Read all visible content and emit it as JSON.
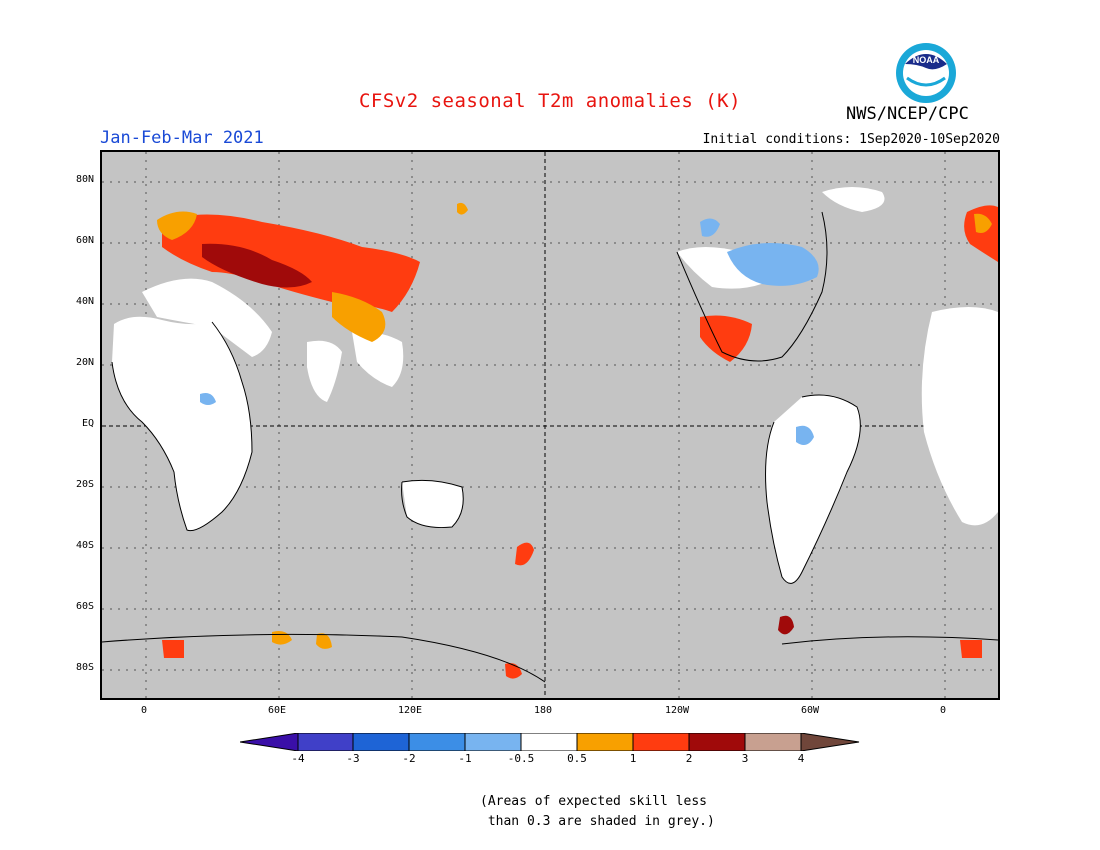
{
  "title": "CFSv2 seasonal T2m anomalies (K)",
  "organization": "NWS/NCEP/CPC",
  "period": "Jan-Feb-Mar 2021",
  "initial_conditions": "Initial conditions: 1Sep2020-10Sep2020",
  "logo_text": "NOAA",
  "latitude_labels": [
    "80N",
    "60N",
    "40N",
    "20N",
    "EQ",
    "20S",
    "40S",
    "60S",
    "80S"
  ],
  "longitude_labels": [
    "0",
    "60E",
    "120E",
    "180",
    "120W",
    "60W",
    "0"
  ],
  "colorbar": {
    "ticks": [
      "-4",
      "-3",
      "-2",
      "-1",
      "-0.5",
      "0.5",
      "1",
      "2",
      "3",
      "4"
    ],
    "colors": [
      "#3a0fa8",
      "#4040c8",
      "#1e64d6",
      "#3c8ee6",
      "#78b4f0",
      "#ffffff",
      "#f8a000",
      "#ff3c10",
      "#a00a0a",
      "#c8a090",
      "#70463a"
    ]
  },
  "skill_note": "(Areas of expected skill less\n than 0.3 are shaded in grey.)",
  "colors": {
    "title": "#e8140f",
    "period": "#1a4ad6",
    "ocean_grey": "#c4c4c4",
    "warm_strong": "#a00a0a",
    "warm": "#ff3c10",
    "warm_light": "#f8a000",
    "cool": "#78b4f0",
    "cool_mid": "#3c8ee6"
  }
}
